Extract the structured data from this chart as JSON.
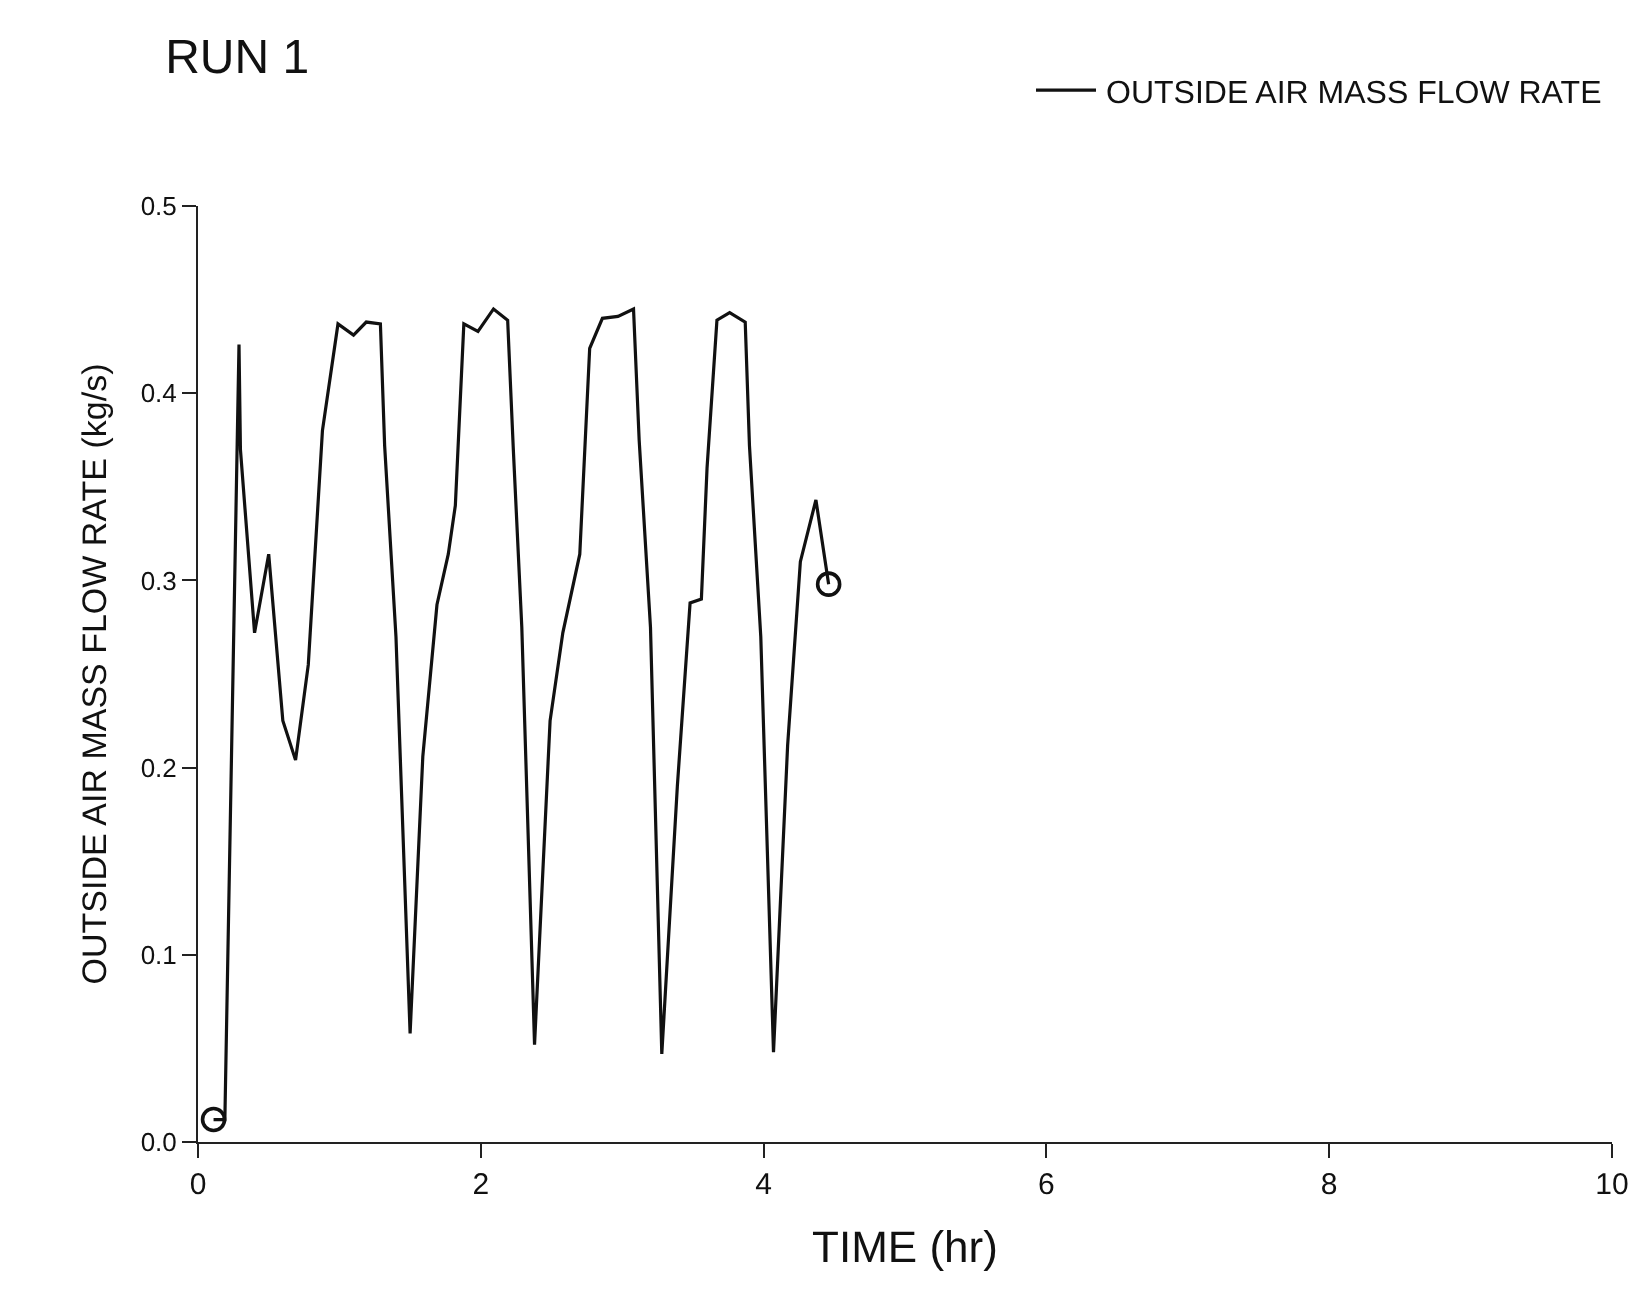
{
  "chart_data": {
    "type": "line",
    "title": "RUN 1",
    "xlabel": "TIME (hr)",
    "ylabel": "OUTSIDE AIR MASS FLOW RATE (kg/s)",
    "x": [
      0.11,
      0.19,
      0.29,
      0.3,
      0.4,
      0.5,
      0.6,
      0.69,
      0.78,
      0.88,
      0.99,
      1.1,
      1.19,
      1.29,
      1.32,
      1.4,
      1.5,
      1.59,
      1.69,
      1.77,
      1.82,
      1.88,
      1.98,
      2.09,
      2.19,
      2.23,
      2.29,
      2.38,
      2.49,
      2.58,
      2.7,
      2.77,
      2.86,
      2.97,
      3.08,
      3.12,
      3.2,
      3.28,
      3.39,
      3.48,
      3.56,
      3.6,
      3.67,
      3.76,
      3.87,
      3.9,
      3.98,
      4.07,
      4.17,
      4.26,
      4.37,
      4.46
    ],
    "series": [
      {
        "name": "OUTSIDE AIR MASS FLOW RATE",
        "color": "#111111",
        "values": [
          0.012,
          0.012,
          0.426,
          0.37,
          0.272,
          0.314,
          0.225,
          0.204,
          0.255,
          0.38,
          0.437,
          0.431,
          0.438,
          0.437,
          0.372,
          0.27,
          0.058,
          0.206,
          0.287,
          0.314,
          0.34,
          0.437,
          0.433,
          0.445,
          0.439,
          0.37,
          0.275,
          0.052,
          0.225,
          0.272,
          0.314,
          0.424,
          0.44,
          0.441,
          0.445,
          0.375,
          0.275,
          0.047,
          0.19,
          0.288,
          0.29,
          0.36,
          0.439,
          0.443,
          0.438,
          0.372,
          0.27,
          0.048,
          0.212,
          0.31,
          0.343,
          0.298
        ]
      },
      {
        "type": "scatter",
        "marker": "circle",
        "color": "#111111",
        "x": [
          0.11,
          4.46
        ],
        "values": [
          0.012,
          0.298
        ]
      }
    ],
    "xlim": [
      0,
      10
    ],
    "xticks": [
      0,
      2,
      4,
      6,
      8,
      10
    ],
    "ylim": [
      0,
      0.5
    ],
    "yticks": [
      {
        "value": 0,
        "label": "0.0"
      },
      {
        "value": 0.1,
        "label": "0.1"
      },
      {
        "value": 0.2,
        "label": "0.2"
      },
      {
        "value": 0.3,
        "label": "0.3"
      },
      {
        "value": 0.4,
        "label": "0.4"
      },
      {
        "value": 0.5,
        "label": "0.5"
      }
    ],
    "legend": "top right",
    "line_style": "solid"
  }
}
